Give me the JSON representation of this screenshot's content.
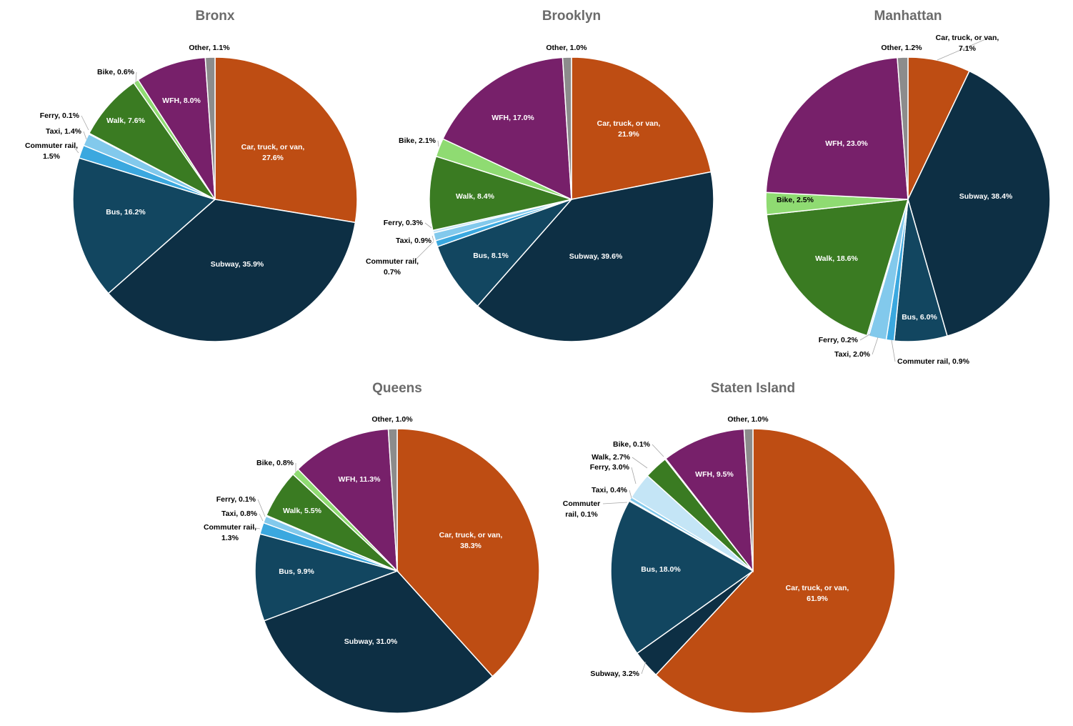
{
  "colors": {
    "Car, truck, or van": "#BE4D13",
    "Subway": "#0D2F44",
    "Bus": "#124660",
    "Commuter rail": "#3BA8DF",
    "Taxi": "#82C9EC",
    "Ferry": "#C4E5F6",
    "Walk": "#3A7B22",
    "Bike": "#8FDB72",
    "WFH": "#77206A",
    "Other": "#8C8C8C"
  },
  "chart_data": [
    {
      "type": "pie",
      "title": "Bronx",
      "categories": [
        "Car, truck, or van",
        "Subway",
        "Bus",
        "Commuter rail",
        "Taxi",
        "Ferry",
        "Walk",
        "Bike",
        "WFH",
        "Other"
      ],
      "values": [
        27.6,
        35.9,
        16.2,
        1.5,
        1.4,
        0.1,
        7.6,
        0.6,
        8.0,
        1.1
      ],
      "labels": [
        "Car, truck, or van,|27.6%",
        "Subway, 35.9%",
        "Bus, 16.2%",
        "Commuter rail,|1.5%",
        "Taxi, 1.4%",
        "Ferry, 0.1%",
        "Walk, 7.6%",
        "Bike, 0.6%",
        "WFH, 8.0%",
        "Other, 1.1%"
      ]
    },
    {
      "type": "pie",
      "title": "Brooklyn",
      "categories": [
        "Car, truck, or van",
        "Subway",
        "Bus",
        "Commuter rail",
        "Taxi",
        "Ferry",
        "Walk",
        "Bike",
        "WFH",
        "Other"
      ],
      "values": [
        21.9,
        39.6,
        8.1,
        0.7,
        0.9,
        0.3,
        8.4,
        2.1,
        17.0,
        1.0
      ],
      "labels": [
        "Car, truck, or van,|21.9%",
        "Subway, 39.6%",
        "Bus, 8.1%",
        "Commuter rail,|0.7%",
        "Taxi, 0.9%",
        "Ferry, 0.3%",
        "Walk, 8.4%",
        "Bike, 2.1%",
        "WFH, 17.0%",
        "Other, 1.0%"
      ]
    },
    {
      "type": "pie",
      "title": "Manhattan",
      "categories": [
        "Car, truck, or van",
        "Subway",
        "Bus",
        "Commuter rail",
        "Taxi",
        "Ferry",
        "Walk",
        "Bike",
        "WFH",
        "Other"
      ],
      "values": [
        7.1,
        38.4,
        6.0,
        0.9,
        2.0,
        0.2,
        18.6,
        2.5,
        23.0,
        1.2
      ],
      "labels": [
        "Car, truck, or van,|7.1%",
        "Subway, 38.4%",
        "Bus, 6.0%",
        "Commuter rail, 0.9%",
        "Taxi, 2.0%",
        "Ferry, 0.2%",
        "Walk, 18.6%",
        "Bike, 2.5%",
        "WFH, 23.0%",
        "Other, 1.2%"
      ]
    },
    {
      "type": "pie",
      "title": "Queens",
      "categories": [
        "Car, truck, or van",
        "Subway",
        "Bus",
        "Commuter rail",
        "Taxi",
        "Ferry",
        "Walk",
        "Bike",
        "WFH",
        "Other"
      ],
      "values": [
        38.3,
        31.0,
        9.9,
        1.3,
        0.8,
        0.1,
        5.5,
        0.8,
        11.3,
        1.0
      ],
      "labels": [
        "Car, truck, or van,|38.3%",
        "Subway, 31.0%",
        "Bus, 9.9%",
        "Commuter rail,|1.3%",
        "Taxi, 0.8%",
        "Ferry, 0.1%",
        "Walk, 5.5%",
        "Bike, 0.8%",
        "WFH, 11.3%",
        "Other, 1.0%"
      ]
    },
    {
      "type": "pie",
      "title": "Staten Island",
      "categories": [
        "Car, truck, or van",
        "Subway",
        "Bus",
        "Commuter rail",
        "Taxi",
        "Ferry",
        "Walk",
        "Bike",
        "WFH",
        "Other"
      ],
      "values": [
        61.9,
        3.2,
        18.0,
        0.1,
        0.4,
        3.0,
        2.7,
        0.1,
        9.5,
        1.0
      ],
      "labels": [
        "Car, truck, or van,|61.9%",
        "Subway, 3.2%",
        "Bus, 18.0%",
        "Commuter|rail, 0.1%",
        "Taxi, 0.4%",
        "Ferry, 3.0%",
        "Walk, 2.7%",
        "Bike, 0.1%",
        "WFH, 9.5%",
        "Other, 1.0%"
      ]
    }
  ]
}
